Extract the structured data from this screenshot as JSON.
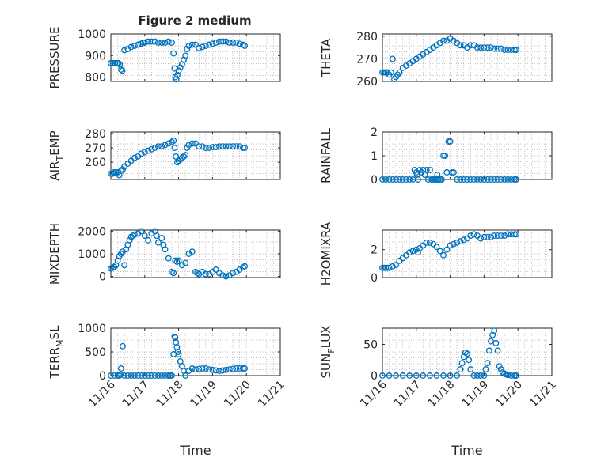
{
  "figure_title": "Figure 2 medium",
  "colors": {
    "marker": "#0072BD",
    "axis": "#262626",
    "grid": "#b0b0b0"
  },
  "chart_data": [
    {
      "type": "scatter",
      "title": "Figure 2 medium",
      "ylabel": "PRESSURE",
      "ylim": [
        780,
        1000
      ],
      "yticks": [
        800,
        900,
        1000
      ],
      "xticks": [
        "11/16",
        "11/17",
        "11/18",
        "11/19",
        "11/20",
        "11/21"
      ],
      "xlabel": "",
      "x": [
        0,
        0.06,
        0.12,
        0.18,
        0.22,
        0.26,
        0.3,
        0.34,
        0.4,
        0.5,
        0.6,
        0.7,
        0.8,
        0.9,
        0.95,
        1.0,
        1.1,
        1.2,
        1.3,
        1.4,
        1.5,
        1.6,
        1.7,
        1.8,
        1.85,
        1.88,
        1.9,
        1.93,
        1.96,
        2.0,
        2.05,
        2.1,
        2.15,
        2.2,
        2.25,
        2.3,
        2.4,
        2.5,
        2.6,
        2.7,
        2.8,
        2.9,
        3.0,
        3.1,
        3.2,
        3.3,
        3.4,
        3.5,
        3.6,
        3.7,
        3.8,
        3.9,
        3.95
      ],
      "y": [
        865,
        865,
        865,
        865,
        865,
        860,
        835,
        830,
        925,
        930,
        940,
        945,
        950,
        955,
        960,
        960,
        965,
        965,
        965,
        960,
        960,
        960,
        965,
        960,
        910,
        840,
        800,
        790,
        810,
        830,
        845,
        860,
        880,
        900,
        930,
        945,
        950,
        950,
        935,
        940,
        945,
        950,
        955,
        960,
        965,
        965,
        965,
        960,
        960,
        960,
        955,
        950,
        945
      ]
    },
    {
      "type": "scatter",
      "title": "",
      "ylabel": "THETA",
      "ylim": [
        260,
        281
      ],
      "yticks": [
        260,
        270,
        280
      ],
      "xticks": [
        "11/16",
        "11/17",
        "11/18",
        "11/19",
        "11/20",
        "11/21"
      ],
      "xlabel": "",
      "x": [
        0,
        0.05,
        0.1,
        0.15,
        0.2,
        0.25,
        0.3,
        0.35,
        0.4,
        0.45,
        0.5,
        0.6,
        0.7,
        0.8,
        0.9,
        1.0,
        1.1,
        1.2,
        1.3,
        1.4,
        1.5,
        1.6,
        1.7,
        1.8,
        1.9,
        2.0,
        2.1,
        2.2,
        2.3,
        2.4,
        2.5,
        2.6,
        2.7,
        2.8,
        2.9,
        3.0,
        3.1,
        3.2,
        3.3,
        3.4,
        3.5,
        3.6,
        3.7,
        3.8,
        3.9,
        3.95
      ],
      "y": [
        264,
        264,
        264,
        264,
        263,
        264,
        270,
        261,
        262,
        263,
        264,
        266,
        267,
        268,
        269,
        270,
        271,
        272,
        273,
        274,
        275,
        276,
        277,
        278,
        278,
        279,
        278,
        277,
        276,
        276,
        275,
        276,
        276,
        275,
        275,
        275,
        275,
        275,
        274.5,
        274.5,
        274.5,
        274,
        274,
        274,
        274,
        274
      ]
    },
    {
      "type": "scatter",
      "title": "",
      "ylabel": "AIR_TEMP",
      "ylim": [
        248,
        281
      ],
      "yticks": [
        260,
        270,
        280
      ],
      "xticks": [
        "11/16",
        "11/17",
        "11/18",
        "11/19",
        "11/20",
        "11/21"
      ],
      "xlabel": "",
      "x": [
        0,
        0.05,
        0.1,
        0.15,
        0.2,
        0.25,
        0.3,
        0.35,
        0.4,
        0.5,
        0.6,
        0.7,
        0.8,
        0.9,
        1.0,
        1.1,
        1.2,
        1.3,
        1.4,
        1.5,
        1.6,
        1.7,
        1.8,
        1.85,
        1.88,
        1.92,
        1.96,
        2.0,
        2.05,
        2.1,
        2.15,
        2.2,
        2.25,
        2.3,
        2.4,
        2.5,
        2.6,
        2.7,
        2.8,
        2.9,
        3.0,
        3.1,
        3.2,
        3.3,
        3.4,
        3.5,
        3.6,
        3.7,
        3.8,
        3.9,
        3.95
      ],
      "y": [
        252,
        252,
        253,
        253,
        253,
        251,
        254,
        255,
        257,
        259,
        261,
        263,
        264,
        266,
        267,
        268,
        269,
        270,
        271,
        271,
        272,
        273,
        274,
        275,
        270,
        264,
        260,
        261,
        262,
        263,
        264,
        265,
        270,
        272,
        273,
        273,
        271,
        271,
        270,
        270,
        270.5,
        270.5,
        271,
        271,
        271,
        271,
        271,
        271,
        271,
        270,
        270
      ]
    },
    {
      "type": "scatter",
      "title": "",
      "ylabel": "RAINFALL",
      "ylim": [
        0,
        2
      ],
      "yticks": [
        0,
        1,
        2
      ],
      "xticks": [
        "11/16",
        "11/17",
        "11/18",
        "11/19",
        "11/20",
        "11/21"
      ],
      "xlabel": "",
      "x": [
        0,
        0.1,
        0.2,
        0.3,
        0.4,
        0.5,
        0.6,
        0.7,
        0.8,
        0.9,
        0.95,
        1.0,
        1.02,
        1.05,
        1.1,
        1.15,
        1.2,
        1.25,
        1.3,
        1.35,
        1.4,
        1.45,
        1.5,
        1.55,
        1.6,
        1.62,
        1.65,
        1.7,
        1.75,
        1.8,
        1.85,
        1.9,
        1.95,
        2.0,
        2.05,
        2.1,
        2.2,
        2.3,
        2.4,
        2.5,
        2.6,
        2.7,
        2.8,
        2.9,
        3.0,
        3.1,
        3.2,
        3.3,
        3.4,
        3.5,
        3.6,
        3.7,
        3.8,
        3.9,
        3.95
      ],
      "y": [
        0,
        0,
        0,
        0,
        0,
        0,
        0,
        0,
        0,
        0,
        0.4,
        0.3,
        0.2,
        0,
        0.4,
        0.3,
        0.4,
        0.2,
        0.4,
        0,
        0.4,
        0,
        0,
        0,
        0,
        0.2,
        0,
        0,
        0,
        1.0,
        1.0,
        0.3,
        1.6,
        1.6,
        0.3,
        0.3,
        0,
        0,
        0,
        0,
        0,
        0,
        0,
        0,
        0,
        0,
        0,
        0,
        0,
        0,
        0,
        0,
        0,
        0,
        0
      ]
    },
    {
      "type": "scatter",
      "title": "",
      "ylabel": "MIXDEPTH",
      "ylim": [
        -50,
        2050
      ],
      "yticks": [
        0,
        1000,
        2000
      ],
      "xticks": [
        "11/16",
        "11/17",
        "11/18",
        "11/19",
        "11/20",
        "11/21"
      ],
      "xlabel": "",
      "x": [
        0,
        0.05,
        0.1,
        0.15,
        0.2,
        0.25,
        0.3,
        0.35,
        0.4,
        0.45,
        0.5,
        0.55,
        0.6,
        0.65,
        0.7,
        0.8,
        0.9,
        1.0,
        1.1,
        1.2,
        1.3,
        1.35,
        1.4,
        1.5,
        1.55,
        1.6,
        1.7,
        1.8,
        1.85,
        1.9,
        1.95,
        2.0,
        2.1,
        2.2,
        2.3,
        2.4,
        2.5,
        2.55,
        2.6,
        2.7,
        2.8,
        2.9,
        3.0,
        3.1,
        3.2,
        3.3,
        3.4,
        3.5,
        3.6,
        3.7,
        3.8,
        3.9,
        3.95
      ],
      "y": [
        350,
        380,
        420,
        500,
        700,
        900,
        1000,
        1100,
        500,
        1200,
        1400,
        1600,
        1750,
        1800,
        1850,
        1900,
        2000,
        1800,
        1600,
        1900,
        2000,
        1800,
        1500,
        1700,
        1400,
        1200,
        800,
        200,
        150,
        700,
        650,
        700,
        500,
        600,
        1000,
        1100,
        200,
        150,
        100,
        200,
        100,
        100,
        200,
        300,
        150,
        50,
        0,
        50,
        150,
        200,
        300,
        400,
        450
      ]
    },
    {
      "type": "scatter",
      "title": "",
      "ylabel": "H2OMIXRA",
      "ylim": [
        0,
        3.4
      ],
      "yticks": [
        0,
        2
      ],
      "xticks": [
        "11/16",
        "11/17",
        "11/18",
        "11/19",
        "11/20",
        "11/21"
      ],
      "xlabel": "",
      "x": [
        0,
        0.05,
        0.1,
        0.15,
        0.2,
        0.3,
        0.4,
        0.5,
        0.6,
        0.7,
        0.8,
        0.9,
        1.0,
        1.05,
        1.1,
        1.2,
        1.3,
        1.4,
        1.5,
        1.6,
        1.7,
        1.8,
        1.9,
        2.0,
        2.1,
        2.2,
        2.3,
        2.4,
        2.5,
        2.6,
        2.7,
        2.8,
        2.9,
        3.0,
        3.1,
        3.2,
        3.3,
        3.4,
        3.5,
        3.6,
        3.7,
        3.8,
        3.9,
        3.95
      ],
      "y": [
        0.7,
        0.7,
        0.7,
        0.7,
        0.7,
        0.8,
        0.9,
        1.2,
        1.4,
        1.6,
        1.8,
        1.9,
        2.0,
        1.8,
        2.1,
        2.3,
        2.5,
        2.5,
        2.4,
        2.2,
        1.9,
        1.6,
        2.0,
        2.3,
        2.4,
        2.5,
        2.6,
        2.7,
        2.8,
        3.0,
        3.1,
        3.0,
        2.8,
        2.9,
        2.9,
        2.9,
        3.0,
        3.0,
        3.0,
        3.0,
        3.1,
        3.1,
        3.1,
        3.1
      ]
    },
    {
      "type": "scatter",
      "title": "",
      "ylabel": "TERR_MSL",
      "ylim": [
        0,
        1000
      ],
      "yticks": [
        0,
        500,
        1000
      ],
      "xticks": [
        "11/16",
        "11/17",
        "11/18",
        "11/19",
        "11/20",
        "11/21"
      ],
      "xlabel": "",
      "x": [
        0,
        0.1,
        0.2,
        0.25,
        0.28,
        0.3,
        0.35,
        0.4,
        0.5,
        0.6,
        0.7,
        0.8,
        0.9,
        1.0,
        1.1,
        1.2,
        1.3,
        1.4,
        1.5,
        1.6,
        1.7,
        1.75,
        1.8,
        1.85,
        1.88,
        1.9,
        1.92,
        1.95,
        1.98,
        2.0,
        2.05,
        2.1,
        2.15,
        2.2,
        2.3,
        2.4,
        2.5,
        2.6,
        2.7,
        2.8,
        2.9,
        3.0,
        3.1,
        3.2,
        3.3,
        3.4,
        3.5,
        3.6,
        3.7,
        3.8,
        3.9,
        3.95
      ],
      "y": [
        0,
        0,
        0,
        0,
        20,
        150,
        620,
        0,
        0,
        0,
        0,
        0,
        0,
        0,
        0,
        0,
        0,
        0,
        0,
        0,
        0,
        0,
        0,
        450,
        820,
        800,
        700,
        600,
        500,
        450,
        300,
        200,
        100,
        0,
        100,
        150,
        130,
        140,
        150,
        150,
        130,
        120,
        110,
        100,
        110,
        120,
        130,
        140,
        150,
        150,
        150,
        150
      ]
    },
    {
      "type": "scatter",
      "title": "",
      "ylabel": "SUN_FLUX",
      "ylim": [
        0,
        76
      ],
      "yticks": [
        0,
        50
      ],
      "xticks": [
        "11/16",
        "11/17",
        "11/18",
        "11/19",
        "11/20",
        "11/21"
      ],
      "xlabel": "",
      "x": [
        0,
        0.2,
        0.4,
        0.6,
        0.8,
        1.0,
        1.2,
        1.4,
        1.6,
        1.8,
        2.0,
        2.2,
        2.3,
        2.35,
        2.4,
        2.45,
        2.5,
        2.55,
        2.6,
        2.7,
        2.8,
        2.9,
        3.0,
        3.05,
        3.1,
        3.15,
        3.2,
        3.25,
        3.3,
        3.35,
        3.4,
        3.45,
        3.5,
        3.55,
        3.6,
        3.65,
        3.7,
        3.8,
        3.9,
        3.95
      ],
      "y": [
        0,
        0,
        0,
        0,
        0,
        0,
        0,
        0,
        0,
        0,
        0,
        0,
        10,
        20,
        30,
        37,
        35,
        25,
        10,
        0,
        0,
        0,
        0,
        10,
        20,
        40,
        55,
        65,
        72,
        52,
        40,
        15,
        10,
        5,
        3,
        2,
        1,
        0,
        0,
        0
      ]
    }
  ]
}
